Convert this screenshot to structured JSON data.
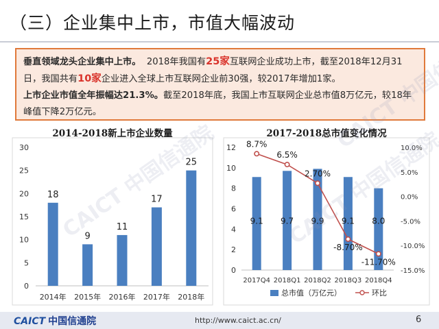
{
  "slide": {
    "title": "（三）企业集中上市，市值大幅波动",
    "page_number": "6",
    "url": "http://www.caict.ac.cn/",
    "logo_en": "CAICT",
    "logo_cn": "中国信通院",
    "colors": {
      "accent_orange": "#e0793a",
      "box_fill": "#fbe9df",
      "bar_blue": "#4a7fc0",
      "line_red": "#c0504d",
      "highlight_red": "#d9332b"
    }
  },
  "summary": {
    "line1_bold": "垂直领域龙头企业集中上市。",
    "line1_a": "2018年我国有",
    "line1_highlight": "25家",
    "line1_b": "互联网企业成功上市，截至2018年12月31日，我国共有",
    "line1_highlight2": "10家",
    "line1_c": "企业进入全球上市互联网企业前30强，较2017年增加1家。",
    "line2_bold": "上市企业市值全年振幅达21.3%。",
    "line2_rest": "截至2018年底，我国上市互联网企业总市值8万亿元，较18年峰值下降2万亿元。"
  },
  "chart_data": [
    {
      "type": "bar",
      "title": "2014-2018新上市企业数量",
      "categories": [
        "2014年",
        "2015年",
        "2016年",
        "2017年",
        "2018年"
      ],
      "values": [
        18,
        9,
        11,
        17,
        25
      ],
      "data_labels": [
        "18",
        "9",
        "11",
        "17",
        "25"
      ],
      "ylim": [
        0,
        30
      ],
      "yticks": [
        "0",
        "5",
        "10",
        "15",
        "20",
        "25",
        "30"
      ],
      "grid": false,
      "color": "#4a7fc0"
    },
    {
      "type": "bar+line",
      "title": "2017-2018总市值变化情况",
      "categories": [
        "2017Q4",
        "2018Q1",
        "2018Q2",
        "2018Q3",
        "2018Q4"
      ],
      "series": [
        {
          "name": "总市值（万亿元）",
          "type": "bar",
          "axis": "left",
          "values": [
            9.1,
            9.7,
            9.9,
            9.1,
            8.0
          ],
          "labels": [
            "9.1",
            "9.7",
            "9.9",
            "9.1",
            "8.0"
          ],
          "color": "#4a7fc0"
        },
        {
          "name": "环比",
          "type": "line",
          "axis": "right",
          "values": [
            8.7,
            6.5,
            2.7,
            -8.7,
            -11.7
          ],
          "labels": [
            "8.7%",
            "6.5%",
            "2.70%",
            "-8.70%",
            "-11.70%"
          ],
          "color": "#c0504d"
        }
      ],
      "ylim_left": [
        0,
        12
      ],
      "yticks_left": [
        "0",
        "2",
        "4",
        "6",
        "8",
        "10",
        "12"
      ],
      "ylim_right": [
        -15,
        10
      ],
      "yticks_right": [
        "-15.0%",
        "-10.0%",
        "-5.0%",
        "0.0%",
        "5.0%",
        "10.0%"
      ],
      "legend": "bottom",
      "grid": false
    }
  ]
}
